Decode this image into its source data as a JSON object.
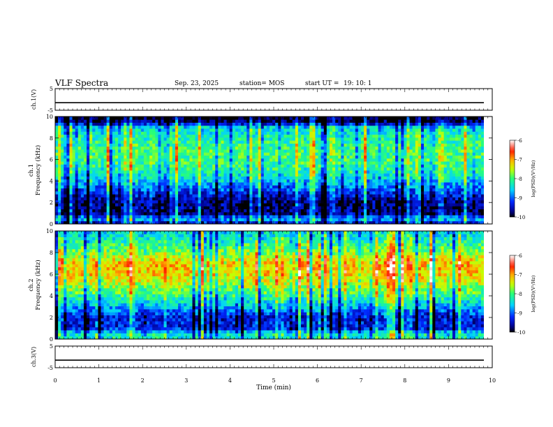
{
  "header": {
    "title": "VLF Spectra",
    "date": "Sep. 23, 2025",
    "station": "station= MOS",
    "start_label": "start  UT =",
    "start_time": "19: 10: 1"
  },
  "chart_data": [
    {
      "type": "line",
      "name": "ch1-waveform",
      "ylabel": "ch.1(V)",
      "ylim": [
        -5,
        5
      ],
      "yticks": [
        "5",
        "-5"
      ],
      "x": [
        0,
        10
      ],
      "values": [
        -1.5,
        -1.5
      ]
    },
    {
      "type": "heatmap",
      "name": "ch1-spectrogram",
      "ylabel_line1": "ch.1",
      "ylabel_line2": "Frequency (kHz)",
      "ylim": [
        0,
        10
      ],
      "yticks": [
        "0",
        "2",
        "4",
        "6",
        "8",
        "10"
      ],
      "xlim": [
        0,
        10
      ],
      "colorbar": {
        "label": "log(PSD)(V²/Hz)",
        "ticks": [
          "-6",
          "-7",
          "-8",
          "-9",
          "-10"
        ],
        "range": [
          -10,
          -6
        ]
      },
      "band_profile": [
        {
          "f": 0.0,
          "level": -9.6
        },
        {
          "f": 0.5,
          "level": -8.6
        },
        {
          "f": 1.0,
          "level": -9.7
        },
        {
          "f": 2.0,
          "level": -9.7
        },
        {
          "f": 3.0,
          "level": -9.2
        },
        {
          "f": 4.0,
          "level": -8.6
        },
        {
          "f": 5.0,
          "level": -8.2
        },
        {
          "f": 6.0,
          "level": -8.0
        },
        {
          "f": 7.0,
          "level": -8.0
        },
        {
          "f": 8.0,
          "level": -8.2
        },
        {
          "f": 9.0,
          "level": -8.5
        },
        {
          "f": 9.5,
          "level": -9.8
        },
        {
          "f": 10.0,
          "level": -10.0
        }
      ]
    },
    {
      "type": "heatmap",
      "name": "ch2-spectrogram",
      "ylabel_line1": "ch.2",
      "ylabel_line2": "Frequency (kHz)",
      "ylim": [
        0,
        10
      ],
      "yticks": [
        "0",
        "2",
        "4",
        "6",
        "8",
        "10"
      ],
      "xlim": [
        0,
        10
      ],
      "colorbar": {
        "label": "log(PSD)(V²/Hz)",
        "ticks": [
          "-6",
          "-7",
          "-8",
          "-9",
          "-10"
        ],
        "range": [
          -10,
          -6
        ]
      },
      "band_profile": [
        {
          "f": 0.0,
          "level": -8.3
        },
        {
          "f": 0.5,
          "level": -8.3
        },
        {
          "f": 1.0,
          "level": -9.3
        },
        {
          "f": 2.0,
          "level": -9.4
        },
        {
          "f": 3.0,
          "level": -8.7
        },
        {
          "f": 4.0,
          "level": -8.1
        },
        {
          "f": 5.0,
          "level": -7.6
        },
        {
          "f": 6.0,
          "level": -7.2
        },
        {
          "f": 7.0,
          "level": -7.1
        },
        {
          "f": 8.0,
          "level": -7.7
        },
        {
          "f": 9.0,
          "level": -8.2
        },
        {
          "f": 10.0,
          "level": -8.5
        }
      ]
    },
    {
      "type": "line",
      "name": "ch3-waveform",
      "ylabel": "ch.3(V)",
      "ylim": [
        -5,
        5
      ],
      "yticks": [
        "5",
        "-5"
      ],
      "x": [
        0,
        10
      ],
      "values": [
        -1.5,
        -1.5
      ]
    }
  ],
  "xaxis": {
    "xlabel": "Time (min)",
    "xlim": [
      0,
      10
    ],
    "ticks": [
      "0",
      "1",
      "2",
      "3",
      "4",
      "5",
      "6",
      "7",
      "8",
      "9",
      "10"
    ]
  }
}
